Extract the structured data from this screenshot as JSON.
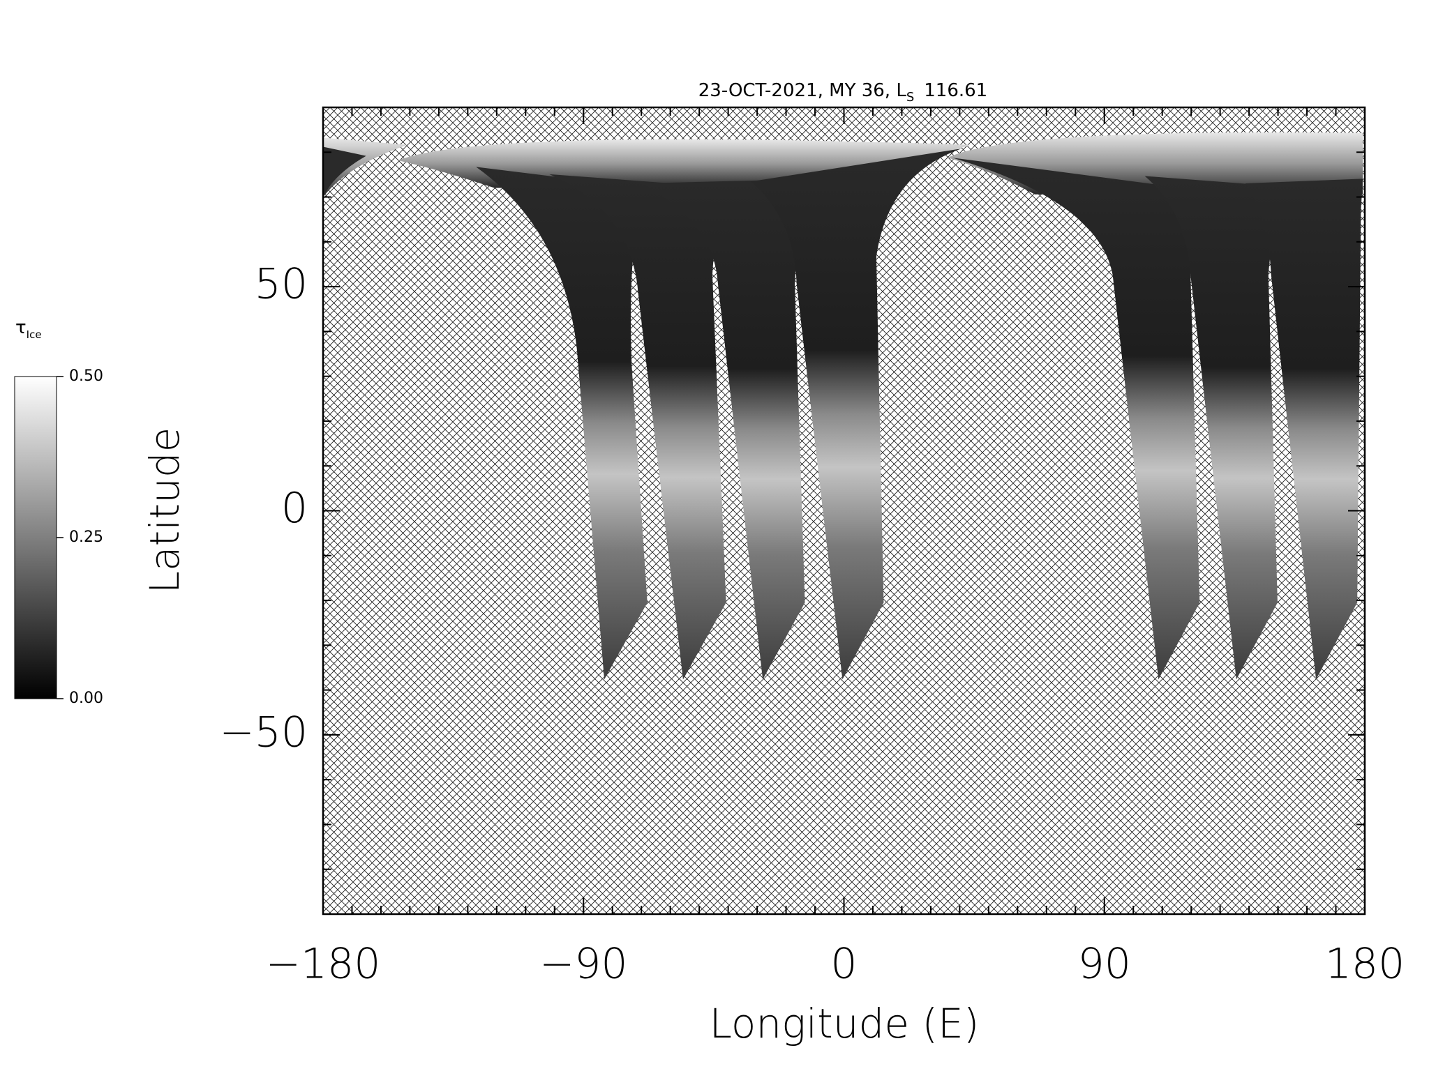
{
  "chart_data": {
    "type": "map",
    "title": "23-OCT-2021, MY 36,  L",
    "title_subscript": "S",
    "title_suffix": "116.61",
    "x_label": "Longitude (E)",
    "y_label": "Latitude",
    "xlim": [
      -180,
      180
    ],
    "xticks": [
      {
        "value": -180,
        "label": "−180"
      },
      {
        "value": -90,
        "label": "−90"
      },
      0,
      90,
      180
    ],
    "ylim": [
      -90,
      90
    ],
    "yticks": [
      {
        "value": -50,
        "label": "−50"
      },
      0,
      50
    ],
    "colorbar": {
      "label": "τ",
      "label_subscript": "Ice",
      "lim": [
        0,
        0.5
      ],
      "ticks": [
        {
          "value": 0,
          "label": "0.00"
        },
        {
          "value": 0.25,
          "label": "0.25"
        },
        {
          "value": 0.5,
          "label": "0.50"
        }
      ]
    }
  }
}
